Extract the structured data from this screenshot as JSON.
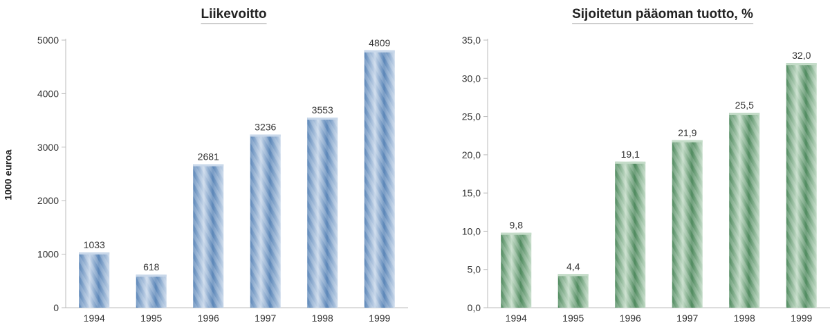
{
  "charts": {
    "left": {
      "title": "Liikevoitto",
      "ylabel": "1000 euroa"
    },
    "right": {
      "title": "Sijoitetun pääoman tuotto, %",
      "ylabel": ""
    }
  },
  "chart_data": [
    {
      "type": "bar",
      "title": "Liikevoitto",
      "xlabel": "",
      "ylabel": "1000 euroa",
      "categories": [
        "1994",
        "1995",
        "1996",
        "1997",
        "1998",
        "1999"
      ],
      "values": [
        1033,
        618,
        2681,
        3236,
        3553,
        4809
      ],
      "value_labels": [
        "1033",
        "618",
        "2681",
        "3236",
        "3553",
        "4809"
      ],
      "ylim": [
        0,
        5000
      ],
      "yticks": [
        0,
        1000,
        2000,
        3000,
        4000,
        5000
      ],
      "ytick_labels": [
        "0",
        "1000",
        "2000",
        "3000",
        "4000",
        "5000"
      ],
      "grid": false,
      "bar_color": "#5b86b8",
      "bar_color_light": "#c9d8ea"
    },
    {
      "type": "bar",
      "title": "Sijoitetun pääoman tuotto, %",
      "xlabel": "",
      "ylabel": "",
      "categories": [
        "1994",
        "1995",
        "1996",
        "1997",
        "1998",
        "1999"
      ],
      "values": [
        9.8,
        4.4,
        19.1,
        21.9,
        25.5,
        32.0
      ],
      "value_labels": [
        "9,8",
        "4,4",
        "19,1",
        "21,9",
        "25,5",
        "32,0"
      ],
      "ylim": [
        0,
        35
      ],
      "yticks": [
        0,
        5,
        10,
        15,
        20,
        25,
        30,
        35
      ],
      "ytick_labels": [
        "0,0",
        "5,0",
        "10,0",
        "15,0",
        "20,0",
        "25,0",
        "30,0",
        "35,0"
      ],
      "grid": false,
      "bar_color": "#4f8a5e",
      "bar_color_light": "#c4dcc8"
    }
  ]
}
